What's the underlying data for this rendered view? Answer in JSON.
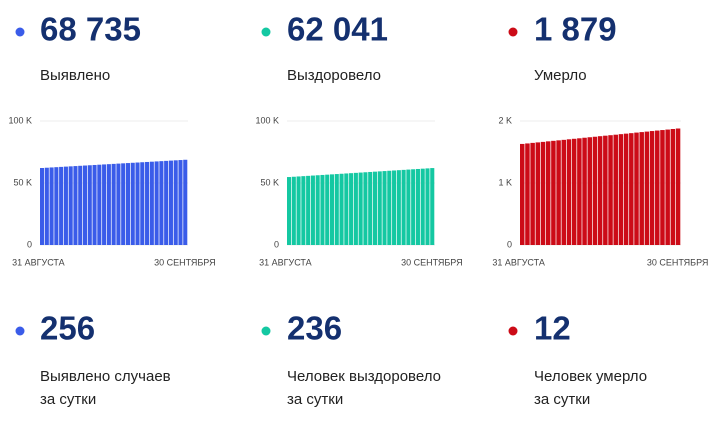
{
  "stats": [
    {
      "value": "68 735",
      "label": "Выявлено"
    },
    {
      "value": "62 041",
      "label": "Выздоровело"
    },
    {
      "value": "1 879",
      "label": "Умерло"
    }
  ],
  "daily": [
    {
      "value": "256",
      "lines": [
        "Выявлено случаев",
        "за сутки"
      ]
    },
    {
      "value": "236",
      "lines": [
        "Человек выздоровело",
        "за сутки"
      ]
    },
    {
      "value": "12",
      "lines": [
        "Человек умерло",
        "за сутки"
      ]
    }
  ],
  "chart_data": [
    {
      "type": "bar",
      "color": "#3a5ce9",
      "grid": true,
      "ylim": [
        0,
        100000
      ],
      "yticks": [
        0,
        {
          "value": 50000,
          "label": "50 K"
        },
        {
          "value": 100000,
          "label": "100 K"
        }
      ],
      "categories": [
        "31 АВГУСТА",
        null,
        null,
        null,
        null,
        null,
        null,
        null,
        null,
        null,
        null,
        null,
        null,
        null,
        null,
        null,
        null,
        null,
        null,
        null,
        null,
        null,
        null,
        null,
        null,
        null,
        null,
        null,
        null,
        null,
        "30 СЕНТЯБРЯ"
      ],
      "values": [
        62100,
        62321,
        62542,
        62763,
        62984,
        63205,
        63426,
        63647,
        63868,
        64089,
        64310,
        64531,
        64752,
        64973,
        65194,
        65415,
        65636,
        65857,
        66078,
        66299,
        66520,
        66741,
        66962,
        67183,
        67404,
        67625,
        67846,
        68067,
        68288,
        68509,
        68735
      ]
    },
    {
      "type": "bar",
      "color": "#14c8a2",
      "grid": true,
      "ylim": [
        0,
        100000
      ],
      "yticks": [
        0,
        {
          "value": 50000,
          "label": "50 K"
        },
        {
          "value": 100000,
          "label": "100 K"
        }
      ],
      "categories": [
        "31 АВГУСТА",
        null,
        null,
        null,
        null,
        null,
        null,
        null,
        null,
        null,
        null,
        null,
        null,
        null,
        null,
        null,
        null,
        null,
        null,
        null,
        null,
        null,
        null,
        null,
        null,
        null,
        null,
        null,
        null,
        null,
        "30 СЕНТЯБРЯ"
      ],
      "values": [
        54800,
        55041,
        55282,
        55523,
        55764,
        56005,
        56246,
        56487,
        56728,
        56969,
        57210,
        57451,
        57692,
        57933,
        58174,
        58415,
        58656,
        58897,
        59138,
        59379,
        59620,
        59861,
        60102,
        60343,
        60584,
        60825,
        61066,
        61307,
        61548,
        61789,
        62041
      ]
    },
    {
      "type": "bar",
      "color": "#cc0b17",
      "grid": true,
      "ylim": [
        0,
        2000
      ],
      "yticks": [
        0,
        {
          "value": 1000,
          "label": "1 K"
        },
        {
          "value": 2000,
          "label": "2 K"
        }
      ],
      "categories": [
        "31 АВГУСТА",
        null,
        null,
        null,
        null,
        null,
        null,
        null,
        null,
        null,
        null,
        null,
        null,
        null,
        null,
        null,
        null,
        null,
        null,
        null,
        null,
        null,
        null,
        null,
        null,
        null,
        null,
        null,
        null,
        null,
        "30 СЕНТЯБРЯ"
      ],
      "values": [
        1630,
        1638,
        1647,
        1655,
        1663,
        1672,
        1680,
        1688,
        1696,
        1705,
        1713,
        1721,
        1730,
        1738,
        1746,
        1755,
        1763,
        1771,
        1779,
        1788,
        1796,
        1804,
        1813,
        1821,
        1829,
        1838,
        1846,
        1854,
        1862,
        1871,
        1879
      ]
    }
  ]
}
